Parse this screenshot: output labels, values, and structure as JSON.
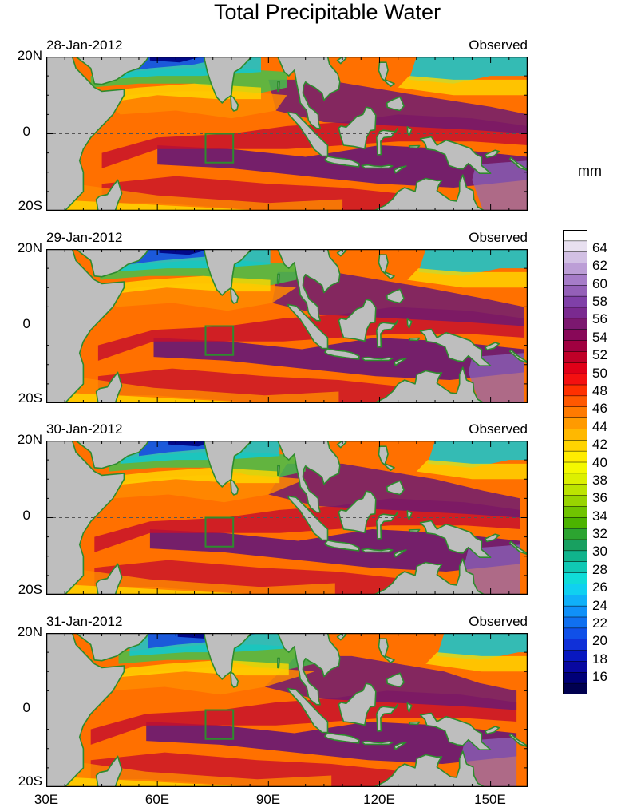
{
  "title": "Total Precipitable Water",
  "units": "mm",
  "panels": [
    {
      "date": "28-Jan-2012",
      "tag": "Observed"
    },
    {
      "date": "29-Jan-2012",
      "tag": "Observed"
    },
    {
      "date": "30-Jan-2012",
      "tag": "Observed"
    },
    {
      "date": "31-Jan-2012",
      "tag": "Observed"
    }
  ],
  "lat_labels": [
    "20N",
    "0",
    "20S"
  ],
  "lon_labels": [
    "30E",
    "60E",
    "90E",
    "120E",
    "150E"
  ],
  "colorbar": {
    "labels": [
      "64",
      "62",
      "60",
      "58",
      "56",
      "54",
      "52",
      "50",
      "48",
      "46",
      "44",
      "42",
      "40",
      "38",
      "36",
      "34",
      "32",
      "30",
      "28",
      "26",
      "24",
      "22",
      "20",
      "18",
      "16"
    ],
    "colors": [
      "#ffffff",
      "#e8e0f0",
      "#d2c0e4",
      "#bc9ed6",
      "#a67cc8",
      "#9460b8",
      "#8040a8",
      "#7a2a90",
      "#7c1870",
      "#880858",
      "#a00040",
      "#c00028",
      "#e00018",
      "#f41010",
      "#ff3000",
      "#ff5800",
      "#ff7a00",
      "#ff9a00",
      "#ffb800",
      "#ffd400",
      "#ffec00",
      "#f4f800",
      "#dcf000",
      "#bce400",
      "#98d400",
      "#70c400",
      "#4cb400",
      "#2ca430",
      "#18a060",
      "#10b48c",
      "#10c8b4",
      "#10dcd8",
      "#10d0f0",
      "#10b0f8",
      "#1090f8",
      "#1070f0",
      "#1050e8",
      "#1030d8",
      "#0818c0",
      "#0808a0",
      "#000078",
      "#000050"
    ],
    "range_mm": [
      14,
      66
    ]
  },
  "map_colors": {
    "land": "#bebebe",
    "coast": "#2e8b2e",
    "box": "#2e8b2e",
    "equator": "#555555",
    "deep_moist": "#6e1a70",
    "moist": "#c8102a",
    "mid": "#ff8a00",
    "semi": "#ffd800",
    "dry_green": "#46c04a",
    "dry_cyan": "#10c8d4",
    "very_dry": "#1848e0",
    "driest": "#000080",
    "lavender": "#8c68c0"
  }
}
